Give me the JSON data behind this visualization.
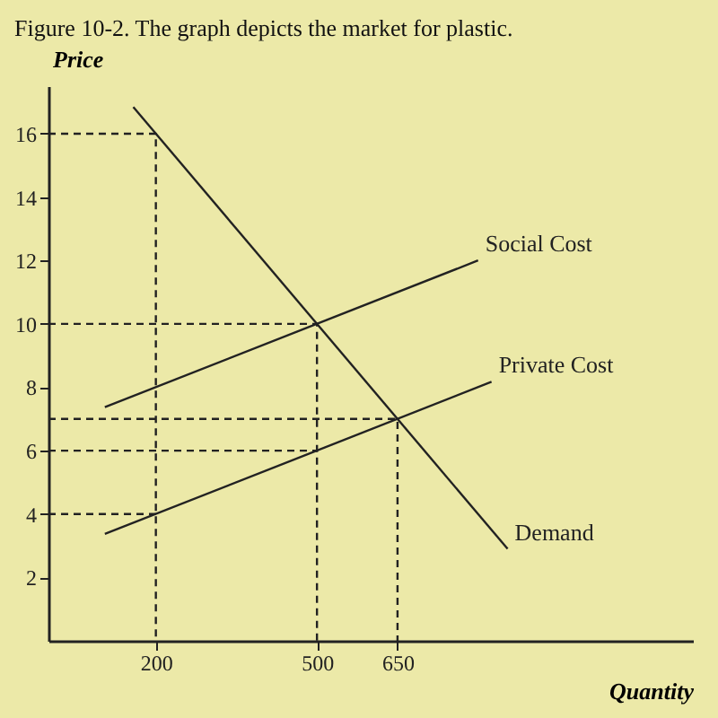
{
  "chart_data": {
    "type": "line",
    "title": "Figure 10-2. The graph depicts the market for plastic.",
    "xlabel": "Quantity",
    "ylabel": "Price",
    "xlim": [
      0,
      1200
    ],
    "ylim": [
      0,
      17.5
    ],
    "xticks": [
      200,
      500,
      650
    ],
    "yticks": [
      2,
      4,
      6,
      8,
      10,
      12,
      14,
      16
    ],
    "grid": false,
    "marker": "none",
    "series": [
      {
        "name": "Social Cost",
        "color": "#222222",
        "x": [
          105,
          800
        ],
        "values": [
          7.37,
          12
        ]
      },
      {
        "name": "Private Cost",
        "color": "#222222",
        "x": [
          105,
          825
        ],
        "values": [
          3.37,
          8.17
        ]
      },
      {
        "name": "Demand",
        "color": "#222222",
        "x": [
          158,
          855
        ],
        "values": [
          16.84,
          2.9
        ]
      },
      {
        "color": "#222222",
        "line_style": "dashed",
        "x": [
          0,
          200,
          200
        ],
        "values": [
          16,
          16,
          0
        ]
      },
      {
        "color": "#222222",
        "line_style": "dashed",
        "x": [
          0,
          500,
          500
        ],
        "values": [
          10,
          10,
          0
        ]
      },
      {
        "color": "#222222",
        "line_style": "dashed",
        "x": [
          0,
          650,
          650
        ],
        "values": [
          7,
          7,
          0
        ]
      },
      {
        "color": "#222222",
        "line_style": "dashed",
        "x": [
          0,
          500
        ],
        "values": [
          6,
          6
        ]
      },
      {
        "color": "#222222",
        "line_style": "dashed",
        "x": [
          0,
          200
        ],
        "values": [
          4,
          4
        ]
      }
    ]
  }
}
